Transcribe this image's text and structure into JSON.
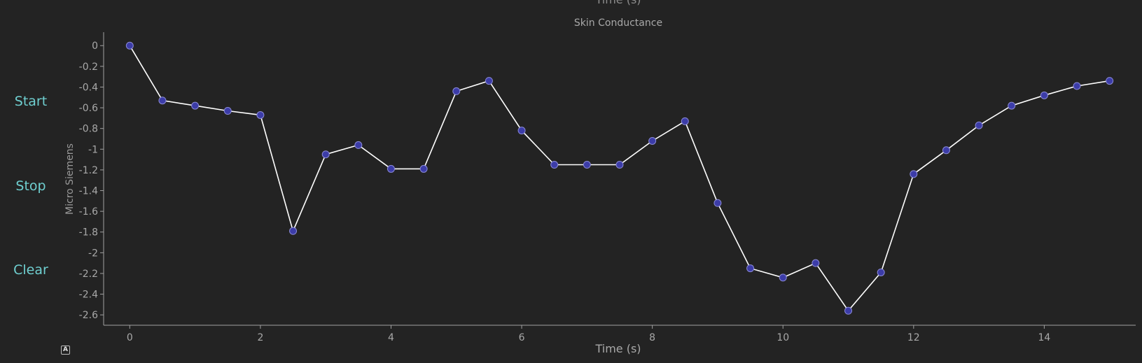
{
  "controls": {
    "start_label": "Start",
    "stop_label": "Stop",
    "clear_label": "Clear",
    "autoscale_label": "A"
  },
  "top_cut_label": "Time (s)",
  "colors": {
    "background": "#232323",
    "axis": "#a0a0a0",
    "line": "#ffffff",
    "marker_fill": "#3c3ca8",
    "marker_edge": "#8a8ad6",
    "button_text": "#6fcfd0"
  },
  "chart_data": {
    "type": "line",
    "title": "Skin Conductance",
    "xlabel": "Time (s)",
    "ylabel": "Micro Siemens",
    "xlim": [
      -0.4,
      15.4
    ],
    "ylim": [
      -2.7,
      0.13
    ],
    "xticks": [
      0,
      2,
      4,
      6,
      8,
      10,
      12,
      14
    ],
    "yticks": [
      0,
      -0.2,
      -0.4,
      -0.6,
      -0.8,
      -1,
      -1.2,
      -1.4,
      -1.6,
      -1.8,
      -2,
      -2.2,
      -2.4,
      -2.6
    ],
    "grid": false,
    "series": [
      {
        "x": [
          0,
          0.5,
          1,
          1.5,
          2,
          2.5,
          3,
          3.5,
          4,
          4.5,
          5,
          5.5,
          6,
          6.5,
          7,
          7.5,
          8,
          8.5,
          9,
          9.5,
          10,
          10.5,
          11,
          11.5,
          12,
          12.5,
          13,
          13.5,
          14,
          14.5,
          15
        ],
        "y": [
          0,
          -0.53,
          -0.58,
          -0.63,
          -0.67,
          -1.79,
          -1.05,
          -0.96,
          -1.19,
          -1.19,
          -0.44,
          -0.34,
          -0.82,
          -1.15,
          -1.15,
          -1.15,
          -0.92,
          -0.73,
          -1.52,
          -2.15,
          -2.24,
          -2.1,
          -2.56,
          -2.19,
          -1.24,
          -1.01,
          -0.77,
          -0.58,
          -0.48,
          -0.39,
          -0.34
        ]
      }
    ]
  }
}
